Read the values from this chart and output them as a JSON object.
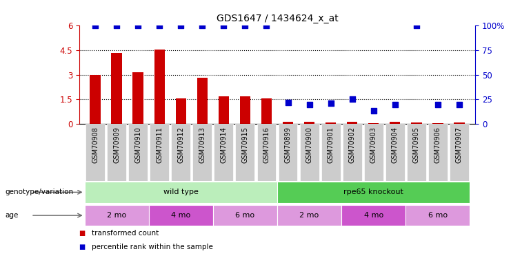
{
  "title": "GDS1647 / 1434624_x_at",
  "samples": [
    "GSM70908",
    "GSM70909",
    "GSM70910",
    "GSM70911",
    "GSM70912",
    "GSM70913",
    "GSM70914",
    "GSM70915",
    "GSM70916",
    "GSM70899",
    "GSM70900",
    "GSM70901",
    "GSM70902",
    "GSM70903",
    "GSM70904",
    "GSM70905",
    "GSM70906",
    "GSM70907"
  ],
  "transformed_count": [
    3.0,
    4.35,
    3.15,
    4.55,
    1.55,
    2.8,
    1.7,
    1.7,
    1.55,
    0.12,
    0.12,
    0.1,
    0.12,
    0.05,
    0.12,
    0.1,
    0.05,
    0.1
  ],
  "percentile_rank": [
    100,
    100,
    100,
    100,
    100,
    100,
    100,
    100,
    100,
    22,
    20,
    21,
    25,
    13,
    20,
    100,
    20,
    20
  ],
  "bar_color": "#cc0000",
  "dot_color": "#0000cc",
  "ylim_left": [
    0,
    6
  ],
  "ylim_right": [
    0,
    100
  ],
  "yticks_left": [
    0,
    1.5,
    3.0,
    4.5,
    6.0
  ],
  "ytick_labels_left": [
    "0",
    "1.5",
    "3",
    "4.5",
    "6"
  ],
  "yticks_right": [
    0,
    25,
    50,
    75,
    100
  ],
  "ytick_labels_right": [
    "0",
    "25",
    "50",
    "75",
    "100%"
  ],
  "grid_values": [
    1.5,
    3.0,
    4.5
  ],
  "genotype_groups": [
    {
      "label": "wild type",
      "start": 0,
      "end": 9,
      "color": "#bbeebb"
    },
    {
      "label": "rpe65 knockout",
      "start": 9,
      "end": 18,
      "color": "#55cc55"
    }
  ],
  "age_groups": [
    {
      "label": "2 mo",
      "start": 0,
      "end": 3,
      "color": "#dd99dd"
    },
    {
      "label": "4 mo",
      "start": 3,
      "end": 6,
      "color": "#cc55cc"
    },
    {
      "label": "6 mo",
      "start": 6,
      "end": 9,
      "color": "#dd99dd"
    },
    {
      "label": "2 mo",
      "start": 9,
      "end": 12,
      "color": "#dd99dd"
    },
    {
      "label": "4 mo",
      "start": 12,
      "end": 15,
      "color": "#cc55cc"
    },
    {
      "label": "6 mo",
      "start": 15,
      "end": 18,
      "color": "#dd99dd"
    }
  ],
  "legend_items": [
    {
      "label": "transformed count",
      "color": "#cc0000"
    },
    {
      "label": "percentile rank within the sample",
      "color": "#0000cc"
    }
  ],
  "genotype_label": "genotype/variation",
  "age_label": "age",
  "background_color": "#ffffff",
  "tick_bg_color": "#cccccc",
  "bar_width": 0.5,
  "dot_size": 40
}
